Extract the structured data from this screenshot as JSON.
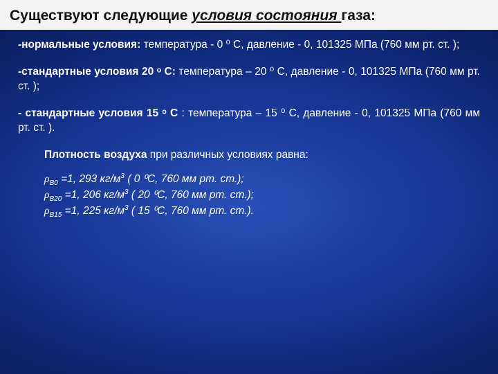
{
  "title": {
    "pre": "Существуют следующие ",
    "ul": "условия состояния ",
    "post": " газа:"
  },
  "cond1": {
    "label": "-нормальные условия:",
    "text": " температура - 0 ⁰ С, давление - 0, 101325 МПа (760 мм рт. ст. );"
  },
  "cond2": {
    "label": "-стандартные условия 20 ᵒ С:",
    "text": "  температура – 20 ⁰ С, давление - 0, 101325 МПа (760 мм рт. ст. );"
  },
  "cond3": {
    "label": "- стандартные условия 15 ᵒ С",
    "text": " :  температура – 15 ⁰ С, давление - 0, 101325 МПа (760 мм рт. ст. )."
  },
  "density_title_bold": "Плотность воздуха",
  "density_title_rest": " при различных условиях равна:",
  "d1": {
    "sub": "В0",
    "val": " =1, 293 кг/м",
    "tail": " ( 0 ⁰С, 760 мм рт. ст.);"
  },
  "d2": {
    "sub": "В20",
    "val": " =1, 206 кг/м",
    "tail": " ( 20 ⁰С, 760 мм рт. ст.);"
  },
  "d3": {
    "sub": "В15",
    "val": " =1, 225 кг/м",
    "tail": " ( 15 ⁰С, 760 мм рт. ст.)."
  },
  "colors": {
    "title_bg": "#f4f4f4",
    "title_fg": "#111111",
    "body_fg": "#ffffff",
    "bg_center": "#2a4fb8",
    "bg_edge": "#010418"
  }
}
